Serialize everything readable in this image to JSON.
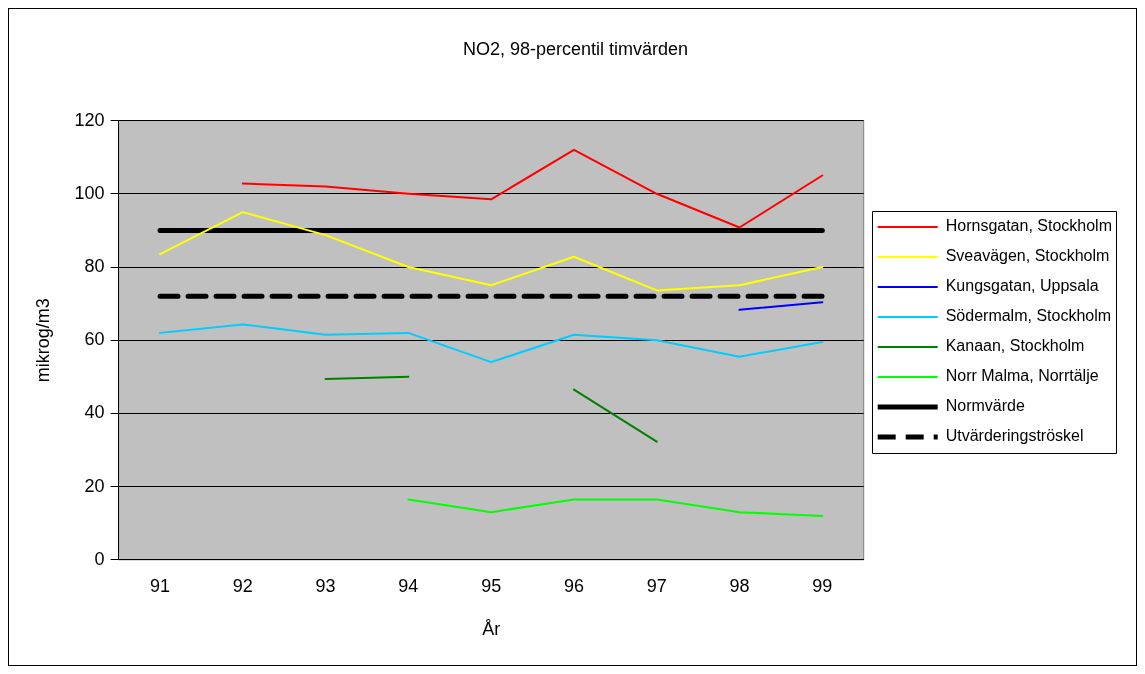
{
  "chart_data": {
    "type": "line",
    "title": "NO2, 98-percentil timvärden",
    "xlabel": "År",
    "ylabel": "mikrog/m3",
    "categories": [
      "91",
      "92",
      "93",
      "94",
      "95",
      "96",
      "97",
      "98",
      "99"
    ],
    "series": [
      {
        "name": "Hornsgatan, Stockholm",
        "color": "#ff0000",
        "values": [
          null,
          102.8,
          102,
          100,
          98.5,
          112,
          100,
          90.8,
          105
        ]
      },
      {
        "name": "Sveavägen, Stockholm",
        "color": "#ffff00",
        "values": [
          83.5,
          95,
          88.7,
          80,
          75,
          82.8,
          73.6,
          75,
          80
        ]
      },
      {
        "name": "Kungsgatan, Uppsala",
        "color": "#0000ff",
        "values": [
          null,
          null,
          null,
          null,
          null,
          null,
          null,
          68.3,
          70.4
        ]
      },
      {
        "name": "Södermalm, Stockholm",
        "color": "#00ccff",
        "values": [
          62,
          64.3,
          61.5,
          62,
          54,
          61.5,
          60,
          55.5,
          59.5
        ]
      },
      {
        "name": "Kanaan, Stockholm",
        "color": "#008000",
        "values": [
          null,
          null,
          49.4,
          50,
          null,
          46.5,
          32.3,
          null,
          null
        ]
      },
      {
        "name": "Norr Malma, Norrtälje",
        "color": "#00ff00",
        "values": [
          null,
          null,
          null,
          16.5,
          13,
          16.5,
          16.5,
          13,
          12
        ]
      },
      {
        "name": "Normvärde",
        "color": "#000000",
        "line_style": "solid",
        "values": [
          90,
          90,
          90,
          90,
          90,
          90,
          90,
          90,
          90
        ]
      },
      {
        "name": "Utvärderingströskel",
        "color": "#000000",
        "line_style": "dashed",
        "values": [
          72,
          72,
          72,
          72,
          72,
          72,
          72,
          72,
          72
        ]
      }
    ],
    "ylim": [
      0,
      120
    ],
    "yticks": [
      0,
      20,
      40,
      60,
      80,
      100,
      120
    ],
    "grid": "y",
    "legend": "right",
    "marker": "none"
  }
}
